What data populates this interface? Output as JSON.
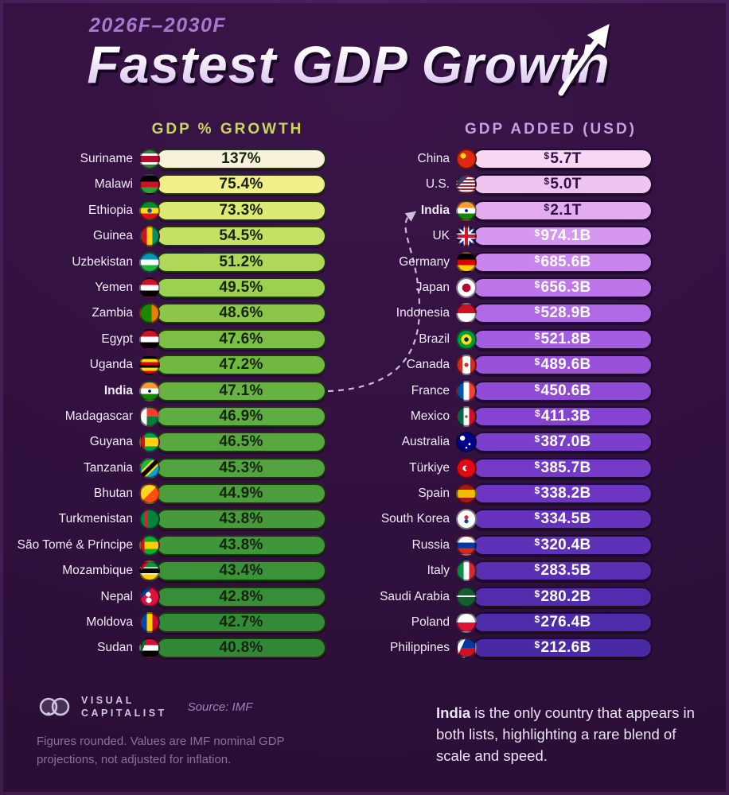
{
  "title": {
    "period": "2026F–2030F",
    "main": "Fastest GDP Growth"
  },
  "columns": {
    "left": {
      "header": "GDP % GROWTH",
      "accent": "#c9d75e",
      "rows": [
        {
          "country": "Suriname",
          "value": "137%",
          "bar": "#f7f3da",
          "flag": "linear-gradient(180deg,#377e3f 0 18%,#ffffff 18% 32%,#b40a2d 32% 68%,#ffffff 68% 82%,#377e3f 82%)"
        },
        {
          "country": "Malawi",
          "value": "75.4%",
          "bar": "#f1ef8a",
          "flag": "linear-gradient(180deg,#000000 0 33%,#ce1126 33% 66%,#339e35 66%)"
        },
        {
          "country": "Ethiopia",
          "value": "73.3%",
          "bar": "#dcea75",
          "flag": "radial-gradient(circle at 50% 50%,#0f47af 0 18%,rgba(0,0,0,0) 18%),linear-gradient(180deg,#078930 0 33%,#fcdd09 33% 66%,#da121a 66%)"
        },
        {
          "country": "Guinea",
          "value": "54.5%",
          "bar": "#c4e164",
          "flag": "linear-gradient(90deg,#ce1126 0 33%,#fcd116 33% 66%,#009460 66%)"
        },
        {
          "country": "Uzbekistan",
          "value": "51.2%",
          "bar": "#afd857",
          "flag": "linear-gradient(180deg,#0099b5 0 33%,#ffffff 33% 66%,#1eb53a 66%)"
        },
        {
          "country": "Yemen",
          "value": "49.5%",
          "bar": "#9cd04f",
          "flag": "linear-gradient(180deg,#ce1126 0 33%,#ffffff 33% 66%,#000000 66%)"
        },
        {
          "country": "Zambia",
          "value": "48.6%",
          "bar": "#8cc74a",
          "flag": "linear-gradient(90deg,#198a00 0 62%,#ef7d00 62%)"
        },
        {
          "country": "Egypt",
          "value": "47.6%",
          "bar": "#7dbf46",
          "flag": "linear-gradient(180deg,#ce1126 0 33%,#ffffff 33% 66%,#000000 66%)"
        },
        {
          "country": "Uganda",
          "value": "47.2%",
          "bar": "#71b843",
          "flag": "linear-gradient(180deg,#000000 0 16%,#fcdc04 16% 33%,#d90000 33% 50%,#000000 50% 66%,#fcdc04 66% 83%,#d90000 83%)"
        },
        {
          "country": "India",
          "value": "47.1%",
          "bar": "#67b241, ",
          "bold": true,
          "flag": "radial-gradient(circle at 50% 50%,#000080 0 12%,rgba(0,0,0,0) 12%),linear-gradient(180deg,#ff9933 0 33%,#ffffff 33% 66%,#138808 66%)"
        },
        {
          "country": "Madagascar",
          "value": "46.9%",
          "bar": "#5ead40",
          "flag": "linear-gradient(90deg,#ffffff 0 33%,rgba(0,0,0,0) 33%),linear-gradient(180deg,#fc3d32 0 50%,#007e3a 50%)"
        },
        {
          "country": "Guyana",
          "value": "46.5%",
          "bar": "#57a83e",
          "flag": "linear-gradient(90deg,#ce1126 0 22%,rgba(0,0,0,0) 22%),linear-gradient(180deg,#009e49 0 25%,#fcd116 25% 75%,#009e49 75%)"
        },
        {
          "country": "Tanzania",
          "value": "45.3%",
          "bar": "#50a33d",
          "flag": "linear-gradient(135deg,#1eb53a 0 34%,#fcd116 34% 42%,#000000 42% 58%,#fcd116 58% 66%,#00a3dd 66%)"
        },
        {
          "country": "Bhutan",
          "value": "44.9%",
          "bar": "#4a9e3c",
          "flag": "linear-gradient(135deg,#ffd520 0 50%,#ff4e12 50%)"
        },
        {
          "country": "Turkmenistan",
          "value": "43.8%",
          "bar": "#459a3b",
          "flag": "linear-gradient(90deg,#00843d 0 18%,#d22630 18% 40%,#00843d 40%)"
        },
        {
          "country": "São Tomé & Príncipe",
          "value": "43.8%",
          "bar": "#40963a",
          "flag": "linear-gradient(90deg,#d21034 0 20%,rgba(0,0,0,0) 20%),linear-gradient(180deg,#12ad2b 0 30%,#ffce00 30% 70%,#12ad2b 70%)"
        },
        {
          "country": "Mozambique",
          "value": "43.4%",
          "bar": "#3c9239",
          "flag": "linear-gradient(135deg,#e4002b 0 25%,rgba(0,0,0,0) 25%),linear-gradient(180deg,#009639 0 30%,#ffffff 30% 36%,#000000 36% 64%,#ffffff 64% 70%,#ffd100 70%)"
        },
        {
          "country": "Nepal",
          "value": "42.8%",
          "bar": "#388e38",
          "flag": "radial-gradient(circle at 42% 35%,#ffffff 0 16%,rgba(0,0,0,0) 16%),radial-gradient(circle at 45% 68%,#ffffff 0 18%,rgba(0,0,0,0) 18%),linear-gradient(135deg,#003893 0 30%,#dc143c 30%)"
        },
        {
          "country": "Moldova",
          "value": "42.7%",
          "bar": "#348b37",
          "flag": "linear-gradient(90deg,#0046ae 0 33%,#ffd200 33% 66%,#cc092f 66%)"
        },
        {
          "country": "Sudan",
          "value": "40.8%",
          "bar": "#318836",
          "flag": "linear-gradient(110deg,#007229 0 24%,rgba(0,0,0,0) 24%),linear-gradient(180deg,#d21034 0 33%,#ffffff 33% 66%,#000000 66%)"
        }
      ]
    },
    "right": {
      "header": "GDP ADDED (USD)",
      "accent": "#c79fe8",
      "rows": [
        {
          "country": "China",
          "value": "$5.7T",
          "bar": "#f6d8f2",
          "dark_text": true,
          "flag": "radial-gradient(circle at 32% 32%,#ffde00 0 16%,rgba(0,0,0,0) 16%),linear-gradient(#de2910,#de2910)"
        },
        {
          "country": "U.S.",
          "value": "$5.0T",
          "bar": "#f0c4f0",
          "dark_text": true,
          "flag": "linear-gradient(135deg,#3c3b6e 0 32%,rgba(0,0,0,0) 32%),repeating-linear-gradient(180deg,#b22234 0 9%,#ffffff 9% 18%)"
        },
        {
          "country": "India",
          "value": "$2.1T",
          "bar": "#e4abf0",
          "dark_text": true,
          "bold": true,
          "flag": "radial-gradient(circle at 50% 50%,#000080 0 12%,rgba(0,0,0,0) 12%),linear-gradient(180deg,#ff9933 0 33%,#ffffff 33% 66%,#138808 66%)"
        },
        {
          "country": "UK",
          "value": "$974.1B",
          "bar": "#d697ee",
          "flag": "linear-gradient(180deg,rgba(0,0,0,0) 0 41%,#cf142b 41% 59%,rgba(0,0,0,0) 59%),linear-gradient(90deg,rgba(0,0,0,0) 0 41%,#cf142b 41% 59%,rgba(0,0,0,0) 59%),linear-gradient(180deg,rgba(0,0,0,0) 0 34%,#ffffff 34% 66%,rgba(0,0,0,0) 66%),linear-gradient(90deg,rgba(0,0,0,0) 0 34%,#ffffff 34% 66%,rgba(0,0,0,0) 66%),linear-gradient(45deg,rgba(0,0,0,0) 0 46%,#ffffff 46% 54%,rgba(0,0,0,0) 54%),linear-gradient(-45deg,rgba(0,0,0,0) 0 46%,#ffffff 46% 54%,rgba(0,0,0,0) 54%),linear-gradient(#00247d,#00247d)"
        },
        {
          "country": "Germany",
          "value": "$685.6B",
          "bar": "#c985ec",
          "flag": "linear-gradient(180deg,#000000 0 33%,#dd0000 33% 66%,#ffce00 66%)"
        },
        {
          "country": "Japan",
          "value": "$656.3B",
          "bar": "#bd75e8",
          "flag": "radial-gradient(circle at 50% 50%,#bc002d 0 34%,#ffffff 34%)"
        },
        {
          "country": "Indonesia",
          "value": "$528.9B",
          "bar": "#b068e4",
          "flag": "linear-gradient(180deg,#ce1126 0 50%,#ffffff 50%)"
        },
        {
          "country": "Brazil",
          "value": "$521.8B",
          "bar": "#a45ce0",
          "flag": "radial-gradient(circle at 50% 50%,#002776 0 18%,#ffdf00 18% 42%,rgba(0,0,0,0) 42%),linear-gradient(#009c3b,#009c3b)"
        },
        {
          "country": "Canada",
          "value": "$489.6B",
          "bar": "#9951db",
          "flag": "radial-gradient(circle at 50% 50%,#d52b1e 0 16%,rgba(0,0,0,0) 16%),linear-gradient(90deg,#d52b1e 0 27%,#ffffff 27% 73%,#d52b1e 73%)"
        },
        {
          "country": "France",
          "value": "$450.6B",
          "bar": "#8f4ad6",
          "flag": "linear-gradient(90deg,#0055a4 0 33%,#ffffff 33% 66%,#ef4135 66%)"
        },
        {
          "country": "Mexico",
          "value": "$411.3B",
          "bar": "#8543d1",
          "flag": "radial-gradient(circle at 50% 50%,#8c6a3f 0 12%,rgba(0,0,0,0) 12%),linear-gradient(90deg,#006847 0 33%,#ffffff 33% 66%,#ce1126 66%)"
        },
        {
          "country": "Australia",
          "value": "$387.0B",
          "bar": "#7c3ecc",
          "flag": "radial-gradient(circle at 28% 28%,#ffffff 0 14%,rgba(0,0,0,0) 14%),radial-gradient(circle at 68% 62%,#ffffff 0 7%,rgba(0,0,0,0) 7%),radial-gradient(circle at 50% 82%,#ffffff 0 6%,rgba(0,0,0,0) 6%),linear-gradient(#00008b,#00008b)"
        },
        {
          "country": "Türkiye",
          "value": "$385.7B",
          "bar": "#7439c7",
          "flag": "radial-gradient(circle at 54% 50%,#e30a17 0 15%,rgba(0,0,0,0) 15%),radial-gradient(circle at 44% 50%,#ffffff 0 20%,rgba(0,0,0,0) 20%),linear-gradient(#e30a17,#e30a17)"
        },
        {
          "country": "Spain",
          "value": "$338.2B",
          "bar": "#6c35c2",
          "flag": "linear-gradient(180deg,#aa151b 0 27%,#f1bf00 27% 73%,#aa151b 73%)"
        },
        {
          "country": "South Korea",
          "value": "$334.5B",
          "bar": "#6532bd",
          "flag": "radial-gradient(circle at 50% 40%,#cd2e3a 0 15%,rgba(0,0,0,0) 15%),radial-gradient(circle at 50% 62%,#0047a0 0 15%,rgba(0,0,0,0) 15%),linear-gradient(#ffffff,#ffffff)"
        },
        {
          "country": "Russia",
          "value": "$320.4B",
          "bar": "#5f30b8",
          "flag": "linear-gradient(180deg,#ffffff 0 33%,#0039a6 33% 66%,#d52b1e 66%)"
        },
        {
          "country": "Italy",
          "value": "$283.5B",
          "bar": "#592eb3",
          "flag": "linear-gradient(90deg,#009246 0 33%,#ffffff 33% 66%,#ce2b37 66%)"
        },
        {
          "country": "Saudi Arabia",
          "value": "$280.2B",
          "bar": "#532cae",
          "flag": "linear-gradient(180deg,rgba(0,0,0,0) 0 42%,#ffffff 42% 50%,rgba(0,0,0,0) 50%),linear-gradient(#165d31,#165d31)"
        },
        {
          "country": "Poland",
          "value": "$276.4B",
          "bar": "#4e2ba9",
          "flag": "linear-gradient(180deg,#ffffff 0 50%,#dc143c 50%)"
        },
        {
          "country": "Philippines",
          "value": "$212.6B",
          "bar": "#4929a4",
          "flag": "linear-gradient(115deg,#ffffff 0 30%,rgba(0,0,0,0) 30%),linear-gradient(180deg,#0038a8 0 50%,#ce1126 50%)"
        }
      ]
    }
  },
  "footer": {
    "brand_line1": "VISUAL",
    "brand_line2": "CAPITALIST",
    "source": "Source: IMF",
    "note": "Figures rounded. Values are IMF nominal GDP projections, not adjusted for inflation.",
    "callout_bold": "India",
    "callout_rest": " is the only country that appears in both lists, highlighting a rare blend of scale and speed."
  },
  "chart_data": [
    {
      "type": "bar",
      "title": "GDP % GROWTH",
      "subtitle": "Fastest GDP Growth 2026F–2030F",
      "unit": "percent",
      "layout": "ranked list, uniform bar width, value labels inside bars",
      "categories": [
        "Suriname",
        "Malawi",
        "Ethiopia",
        "Guinea",
        "Uzbekistan",
        "Yemen",
        "Zambia",
        "Egypt",
        "Uganda",
        "India",
        "Madagascar",
        "Guyana",
        "Tanzania",
        "Bhutan",
        "Turkmenistan",
        "São Tomé & Príncipe",
        "Mozambique",
        "Nepal",
        "Moldova",
        "Sudan"
      ],
      "values": [
        137,
        75.4,
        73.3,
        54.5,
        51.2,
        49.5,
        48.6,
        47.6,
        47.2,
        47.1,
        46.9,
        46.5,
        45.3,
        44.9,
        43.8,
        43.8,
        43.4,
        42.8,
        42.7,
        40.8
      ]
    },
    {
      "type": "bar",
      "title": "GDP ADDED (USD)",
      "subtitle": "Fastest GDP Growth 2026F–2030F",
      "unit": "USD billions",
      "layout": "ranked list, uniform bar width, value labels inside bars",
      "categories": [
        "China",
        "U.S.",
        "India",
        "UK",
        "Germany",
        "Japan",
        "Indonesia",
        "Brazil",
        "Canada",
        "France",
        "Mexico",
        "Australia",
        "Türkiye",
        "Spain",
        "South Korea",
        "Russia",
        "Italy",
        "Saudi Arabia",
        "Poland",
        "Philippines"
      ],
      "values": [
        5700,
        5000,
        2100,
        974.1,
        685.6,
        656.3,
        528.9,
        521.8,
        489.6,
        450.6,
        411.3,
        387.0,
        385.7,
        338.2,
        334.5,
        320.4,
        283.5,
        280.2,
        276.4,
        212.6
      ],
      "values_display": [
        "$5.7T",
        "$5.0T",
        "$2.1T",
        "$974.1B",
        "$685.6B",
        "$656.3B",
        "$528.9B",
        "$521.8B",
        "$489.6B",
        "$450.6B",
        "$411.3B",
        "$387.0B",
        "$385.7B",
        "$338.2B",
        "$334.5B",
        "$320.4B",
        "$283.5B",
        "$280.2B",
        "$276.4B",
        "$212.6B"
      ]
    }
  ]
}
